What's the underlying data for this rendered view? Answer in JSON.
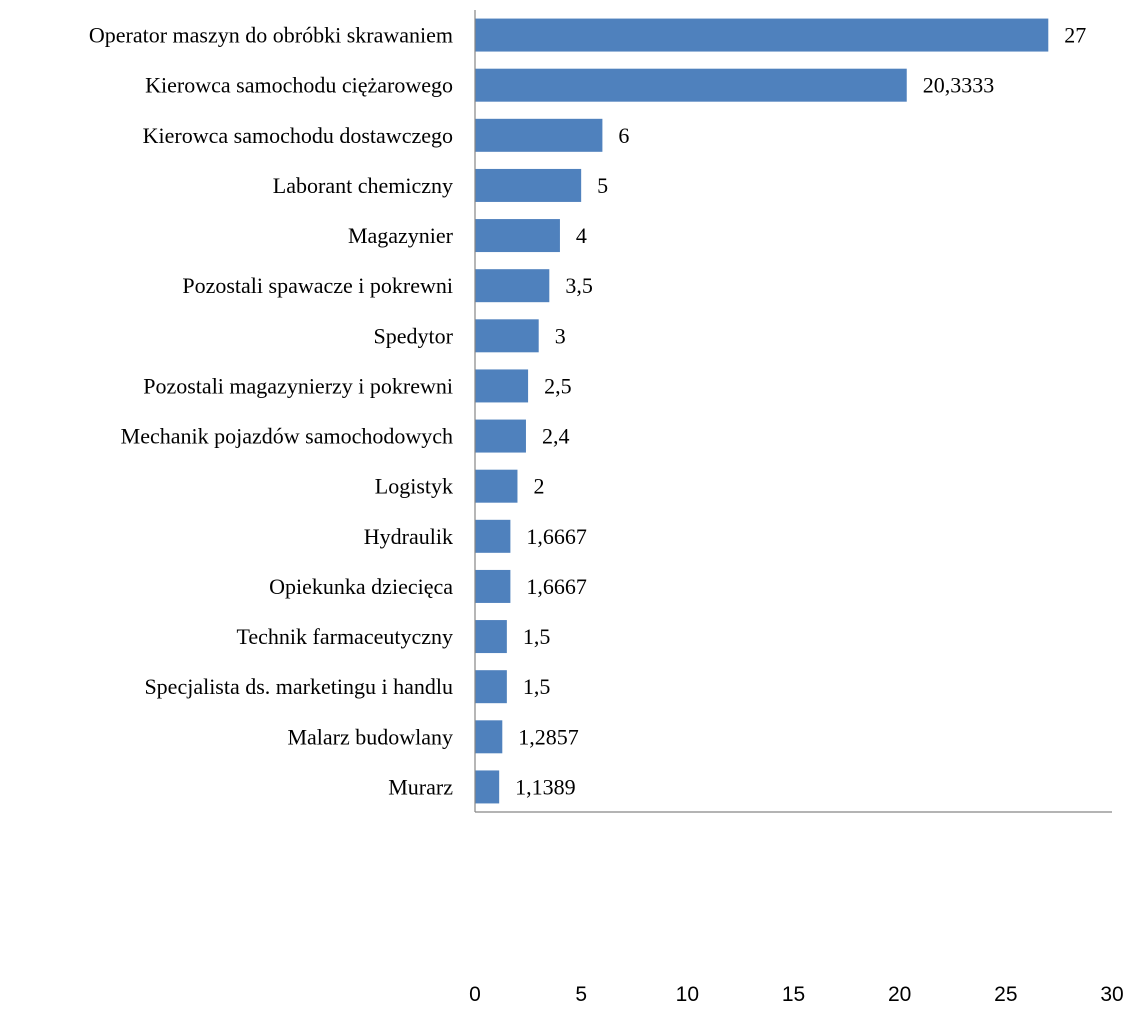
{
  "chart_data": {
    "type": "bar",
    "orientation": "horizontal",
    "title": "",
    "xlabel": "",
    "ylabel": "",
    "bar_color": "#4f81bd",
    "xlim": [
      0,
      30
    ],
    "x_ticks": [
      "0",
      "5",
      "10",
      "15",
      "20",
      "25",
      "30"
    ],
    "grid": false,
    "categories": [
      "Operator maszyn do obróbki skrawaniem",
      "Kierowca samochodu ciężarowego",
      "Kierowca samochodu dostawczego",
      "Laborant chemiczny",
      "Magazynier",
      "Pozostali spawacze i pokrewni",
      "Spedytor",
      "Pozostali magazynierzy i pokrewni",
      "Mechanik pojazdów samochodowych",
      "Logistyk",
      "Hydraulik",
      "Opiekunka dziecięca",
      "Technik farmaceutyczny",
      "Specjalista ds. marketingu i handlu",
      "Malarz budowlany",
      "Murarz"
    ],
    "values": [
      27,
      20.3333,
      6,
      5,
      4,
      3.5,
      3,
      2.5,
      2.4,
      2,
      1.6667,
      1.6667,
      1.5,
      1.5,
      1.2857,
      1.1389
    ],
    "value_labels": [
      "27",
      "20,3333",
      "6",
      "5",
      "4",
      "3,5",
      "3",
      "2,5",
      "2,4",
      "2",
      "1,6667",
      "1,6667",
      "1,5",
      "1,5",
      "1,2857",
      "1,1389"
    ]
  }
}
